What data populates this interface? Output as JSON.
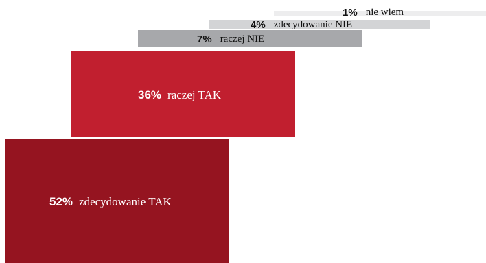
{
  "chart_data": {
    "type": "bar",
    "orientation": "stacked-staircase",
    "categories": [
      "zdecydowanie TAK",
      "raczej TAK",
      "raczej NIE",
      "zdecydowanie NIE",
      "nie wiem"
    ],
    "values": [
      52,
      36,
      7,
      4,
      1
    ],
    "value_labels": [
      "52%",
      "36%",
      "7%",
      "4%",
      "1%"
    ],
    "colors": [
      "#951420",
      "#C11F2F",
      "#A7A8AB",
      "#D3D4D6",
      "#EDEDEE"
    ],
    "grid": false,
    "legend": "none"
  }
}
